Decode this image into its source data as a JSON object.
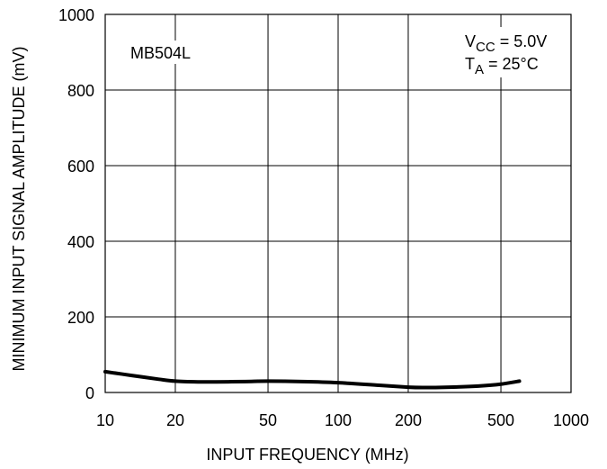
{
  "chart_data": {
    "type": "line",
    "title": "",
    "xlabel": "INPUT FREQUENCY (MHz)",
    "ylabel": "MINIMUM INPUT SIGNAL AMPLITUDE (mV)",
    "x_scale": "log",
    "xlim": [
      10,
      1000
    ],
    "ylim": [
      0,
      1000
    ],
    "x_ticks": [
      10,
      20,
      50,
      100,
      200,
      500,
      1000
    ],
    "x_tick_labels": [
      "10",
      "20",
      "50",
      "100",
      "200",
      "500",
      "1000"
    ],
    "y_ticks": [
      0,
      200,
      400,
      600,
      800,
      1000
    ],
    "y_tick_labels": [
      "0",
      "200",
      "400",
      "600",
      "800",
      "1000"
    ],
    "grid": true,
    "annotations": {
      "device": "MB504L",
      "vcc_main": "V",
      "vcc_sub": "CC",
      "vcc_value": " = 5.0V",
      "ta_main": "T",
      "ta_sub": "A",
      "ta_value": " = 25°C"
    },
    "series": [
      {
        "x": [
          10,
          13,
          17,
          20,
          25,
          30,
          40,
          50,
          70,
          100,
          150,
          200,
          230,
          300,
          400,
          500,
          600
        ],
        "y": [
          55,
          45,
          35,
          30,
          28,
          28,
          29,
          30,
          29,
          26,
          19,
          14,
          13,
          14,
          17,
          22,
          30
        ]
      }
    ]
  }
}
